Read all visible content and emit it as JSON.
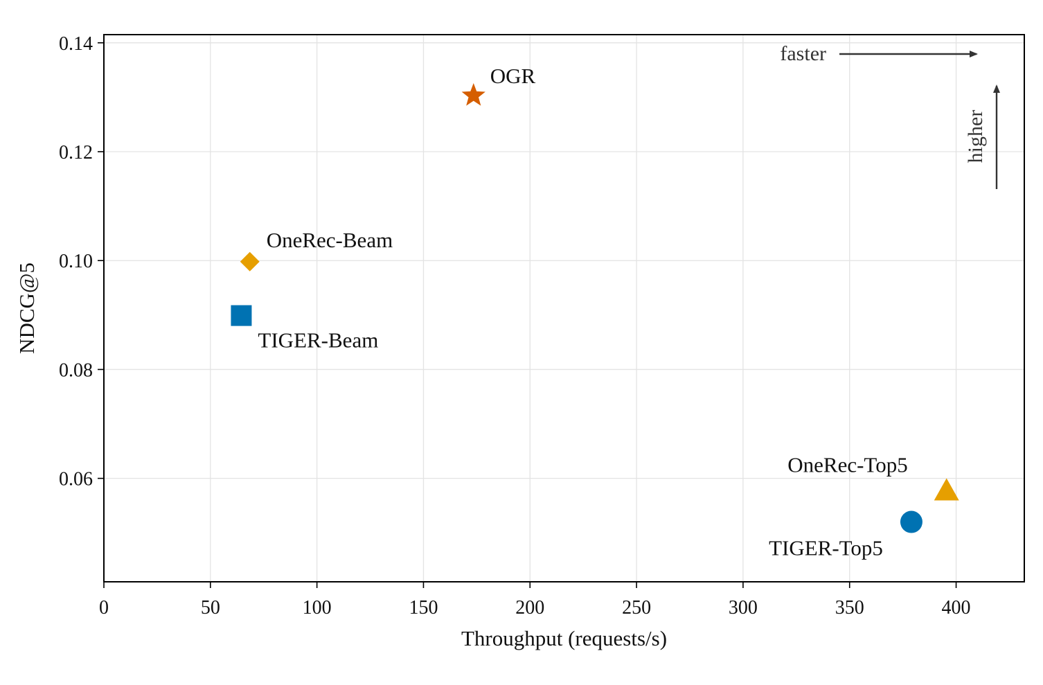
{
  "chart_data": {
    "type": "scatter",
    "title": "",
    "xlabel": "Throughput (requests/s)",
    "ylabel": "NDCG@5",
    "xlim": [
      0,
      432
    ],
    "ylim": [
      0.041,
      0.1415
    ],
    "xticks": [
      0,
      50,
      100,
      150,
      200,
      250,
      300,
      350,
      400
    ],
    "xtick_labels": [
      "0",
      "50",
      "100",
      "150",
      "200",
      "250",
      "300",
      "350",
      "400"
    ],
    "yticks": [
      0.06,
      0.08,
      0.1,
      0.12,
      0.14
    ],
    "ytick_labels": [
      "0.06",
      "0.08",
      "0.10",
      "0.12",
      "0.14"
    ],
    "grid": true,
    "legend": "none",
    "points": [
      {
        "name": "OGR",
        "x": 173.5,
        "y": 0.1303,
        "marker": "star",
        "color": "#d55e00"
      },
      {
        "name": "OneRec-Beam",
        "x": 68.5,
        "y": 0.0998,
        "marker": "diamond",
        "color": "#e69f00"
      },
      {
        "name": "TIGER-Beam",
        "x": 64.5,
        "y": 0.0899,
        "marker": "square",
        "color": "#0072b2"
      },
      {
        "name": "OneRec-Top5",
        "x": 395.5,
        "y": 0.0576,
        "marker": "triangle",
        "color": "#e69f00"
      },
      {
        "name": "TIGER-Top5",
        "x": 379,
        "y": 0.052,
        "marker": "circle",
        "color": "#0072b2"
      }
    ],
    "annotations": [
      {
        "text": "faster",
        "direction": "right"
      },
      {
        "text": "higher",
        "direction": "up"
      }
    ]
  }
}
